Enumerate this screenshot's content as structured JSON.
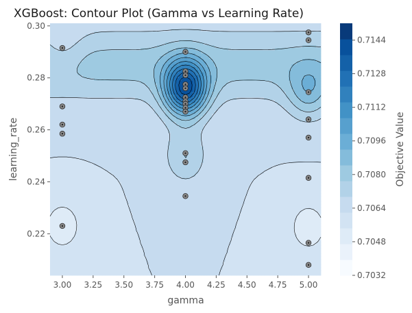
{
  "chart_data": {
    "type": "contour",
    "title": "XGBoost: Contour Plot (Gamma vs Learning Rate)",
    "xlabel": "gamma",
    "ylabel": "learning_rate",
    "colorbar_label": "Objective Value",
    "xlim": [
      2.9,
      5.1
    ],
    "ylim": [
      0.204,
      0.301
    ],
    "xticks": [
      3.0,
      3.25,
      3.5,
      3.75,
      4.0,
      4.25,
      4.5,
      4.75,
      5.0
    ],
    "xtick_labels": [
      "3.00",
      "3.25",
      "3.50",
      "3.75",
      "4.00",
      "4.25",
      "4.50",
      "4.75",
      "5.00"
    ],
    "yticks": [
      0.22,
      0.24,
      0.26,
      0.28,
      0.3
    ],
    "ytick_labels": [
      "0.22",
      "0.24",
      "0.26",
      "0.28",
      "0.30"
    ],
    "colorbar_range": [
      0.7032,
      0.7152
    ],
    "colorbar_ticks": [
      0.7032,
      0.7048,
      0.7064,
      0.708,
      0.7096,
      0.7112,
      0.7128,
      0.7144
    ],
    "colorbar_tick_labels": [
      "0.7032",
      "0.7048",
      "0.7064",
      "0.7080",
      "0.7096",
      "0.7112",
      "0.7128",
      "0.7144"
    ],
    "colormap": [
      "#f7fbff",
      "#eaf2fb",
      "#deebf7",
      "#d2e3f3",
      "#c6dbef",
      "#b2d2e8",
      "#9ecae1",
      "#84bcdb",
      "#6baed6",
      "#57a0ce",
      "#4292c6",
      "#3181bd",
      "#2171b5",
      "#1461a8",
      "#08519c",
      "#083a7a"
    ],
    "trial_points": [
      {
        "x": 3.0,
        "y": 0.2915
      },
      {
        "x": 3.0,
        "y": 0.269
      },
      {
        "x": 3.0,
        "y": 0.262
      },
      {
        "x": 3.0,
        "y": 0.2585
      },
      {
        "x": 3.0,
        "y": 0.223
      },
      {
        "x": 4.0,
        "y": 0.29
      },
      {
        "x": 4.0,
        "y": 0.2825
      },
      {
        "x": 4.0,
        "y": 0.281
      },
      {
        "x": 4.0,
        "y": 0.2775
      },
      {
        "x": 4.0,
        "y": 0.276
      },
      {
        "x": 4.0,
        "y": 0.2725
      },
      {
        "x": 4.0,
        "y": 0.271
      },
      {
        "x": 4.0,
        "y": 0.27
      },
      {
        "x": 4.0,
        "y": 0.2685
      },
      {
        "x": 4.0,
        "y": 0.267
      },
      {
        "x": 4.0,
        "y": 0.251
      },
      {
        "x": 4.0,
        "y": 0.2475
      },
      {
        "x": 4.0,
        "y": 0.2345
      },
      {
        "x": 5.0,
        "y": 0.2975
      },
      {
        "x": 5.0,
        "y": 0.2945
      },
      {
        "x": 5.0,
        "y": 0.2745
      },
      {
        "x": 5.0,
        "y": 0.264
      },
      {
        "x": 5.0,
        "y": 0.257
      },
      {
        "x": 5.0,
        "y": 0.2415
      },
      {
        "x": 5.0,
        "y": 0.2165
      },
      {
        "x": 5.0,
        "y": 0.208
      }
    ],
    "surface_baseline": 0.7062,
    "surface_bumps": [
      {
        "x": 4.0,
        "y": 0.276,
        "value": 0.007
      },
      {
        "x": 4.0,
        "y": 0.25,
        "value": 0.0015
      },
      {
        "x": 5.0,
        "y": 0.2745,
        "value": 0.002
      },
      {
        "x": 3.0,
        "y": 0.2915,
        "value": -0.0008
      },
      {
        "x": 3.0,
        "y": 0.223,
        "value": -0.0012
      },
      {
        "x": 5.0,
        "y": 0.2225,
        "value": -0.0012
      }
    ],
    "surface_ridge": {
      "y": 0.285,
      "value": 0.003
    },
    "grid": false,
    "legend": "colorbar-right"
  }
}
